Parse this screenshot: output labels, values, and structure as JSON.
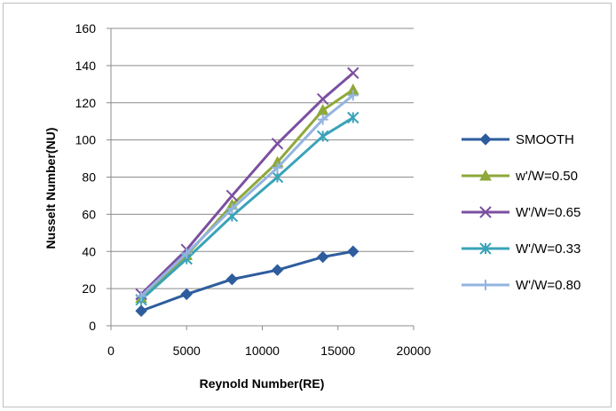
{
  "chart_data": {
    "type": "line",
    "title": "",
    "xlabel": "Reynold Number(RE)",
    "ylabel": "Nusselt Number(NU)",
    "xlim": [
      0,
      20000
    ],
    "ylim": [
      0,
      160
    ],
    "xticks": [
      0,
      5000,
      10000,
      15000,
      20000
    ],
    "yticks": [
      0,
      20,
      40,
      60,
      80,
      100,
      120,
      140,
      160
    ],
    "grid": "horizontal",
    "legend_position": "right",
    "x": [
      2000,
      5000,
      8000,
      11000,
      14000,
      16000
    ],
    "series": [
      {
        "name": "SMOOTH",
        "color": "#2e5d9e",
        "marker": "diamond",
        "values": [
          8,
          17,
          25,
          30,
          37,
          40
        ]
      },
      {
        "name": "w'/W=0.50",
        "color": "#8ea83a",
        "marker": "triangle",
        "values": [
          15,
          38,
          65,
          88,
          116,
          127
        ]
      },
      {
        "name": "W'/W=0.65",
        "color": "#7b4fa0",
        "marker": "x",
        "values": [
          17,
          41,
          70,
          98,
          122,
          136
        ]
      },
      {
        "name": "W'/W=0.33",
        "color": "#3aa3b8",
        "marker": "star",
        "values": [
          14,
          36,
          59,
          80,
          102,
          112
        ]
      },
      {
        "name": "W'/W=0.80",
        "color": "#93b4e0",
        "marker": "plus",
        "values": [
          16,
          39,
          63,
          85,
          111,
          124
        ]
      }
    ]
  }
}
